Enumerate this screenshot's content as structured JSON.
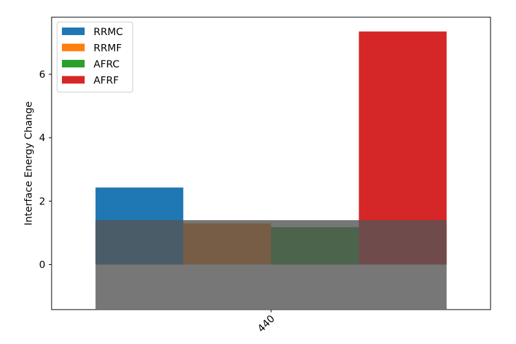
{
  "chart_data": {
    "type": "bar",
    "title": "",
    "xlabel": "",
    "ylabel": "Interface Energy Change",
    "ylim": [
      -1.42,
      7.8
    ],
    "yticks": [
      0,
      2,
      4,
      6
    ],
    "grid": false,
    "legend_position": "top-left",
    "categories": [
      "440"
    ],
    "series": [
      {
        "name": "RRMC",
        "values": [
          2.43
        ],
        "color": "#1f77b4"
      },
      {
        "name": "RRMF",
        "values": [
          1.3
        ],
        "color": "#ff7f0e"
      },
      {
        "name": "AFRC",
        "values": [
          1.18
        ],
        "color": "#2ca02c"
      },
      {
        "name": "AFRF",
        "values": [
          7.35
        ],
        "color": "#d62728"
      }
    ],
    "band": {
      "low": -1.4,
      "high": 1.4,
      "color": "#555555",
      "opacity": 0.8
    }
  }
}
